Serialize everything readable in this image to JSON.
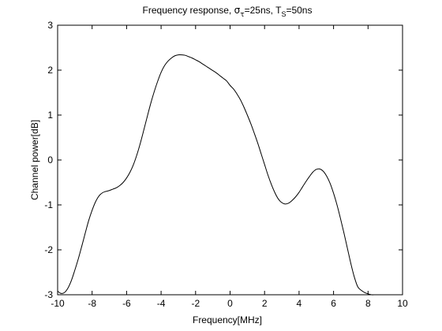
{
  "chart_data": {
    "type": "line",
    "title": {
      "prefix": "Frequency response, ",
      "sym1": "σ",
      "sub1": "τ",
      "mid": "=25ns, ",
      "sym2": "T",
      "sub2": "S",
      "suffix": "=50ns"
    },
    "xlabel": "Frequency[MHz]",
    "ylabel": "Channel power[dB]",
    "xlim": [
      -10,
      10
    ],
    "ylim": [
      -3,
      3
    ],
    "xticks": [
      -10,
      -8,
      -6,
      -4,
      -2,
      0,
      2,
      4,
      6,
      8,
      10
    ],
    "yticks": [
      -3,
      -2,
      -1,
      0,
      1,
      2,
      3
    ],
    "grid": false,
    "series": [
      {
        "color": "#000000",
        "x": [
          -10,
          -9.8,
          -9.6,
          -9.4,
          -9.2,
          -9.0,
          -8.8,
          -8.6,
          -8.4,
          -8.2,
          -8.0,
          -7.8,
          -7.6,
          -7.4,
          -7.2,
          -7.0,
          -6.8,
          -6.6,
          -6.4,
          -6.2,
          -6.0,
          -5.8,
          -5.6,
          -5.4,
          -5.2,
          -5.0,
          -4.8,
          -4.6,
          -4.4,
          -4.2,
          -4.0,
          -3.8,
          -3.6,
          -3.4,
          -3.2,
          -3.0,
          -2.8,
          -2.6,
          -2.4,
          -2.2,
          -2.0,
          -1.8,
          -1.6,
          -1.4,
          -1.2,
          -1.0,
          -0.8,
          -0.6,
          -0.4,
          -0.2,
          0.0,
          0.2,
          0.4,
          0.6,
          0.8,
          1.0,
          1.2,
          1.4,
          1.6,
          1.8,
          2.0,
          2.2,
          2.4,
          2.6,
          2.8,
          3.0,
          3.2,
          3.4,
          3.6,
          3.8,
          4.0,
          4.2,
          4.4,
          4.6,
          4.8,
          5.0,
          5.2,
          5.4,
          5.6,
          5.8,
          6.0,
          6.2,
          6.4,
          6.6,
          6.8,
          7.0,
          7.2,
          7.4,
          7.6,
          7.8,
          8.0,
          8.2,
          8.4,
          8.6,
          8.8,
          9.0,
          9.2,
          9.4,
          9.6,
          9.8,
          10.0
        ],
        "y": [
          -2.92,
          -2.97,
          -2.95,
          -2.85,
          -2.68,
          -2.45,
          -2.2,
          -1.92,
          -1.63,
          -1.35,
          -1.12,
          -0.93,
          -0.8,
          -0.73,
          -0.7,
          -0.68,
          -0.65,
          -0.62,
          -0.57,
          -0.5,
          -0.4,
          -0.27,
          -0.1,
          0.12,
          0.38,
          0.67,
          0.97,
          1.26,
          1.52,
          1.75,
          1.95,
          2.1,
          2.2,
          2.27,
          2.32,
          2.34,
          2.34,
          2.33,
          2.3,
          2.27,
          2.23,
          2.19,
          2.14,
          2.09,
          2.04,
          1.99,
          1.94,
          1.88,
          1.82,
          1.76,
          1.66,
          1.58,
          1.47,
          1.34,
          1.18,
          1.0,
          0.81,
          0.6,
          0.38,
          0.14,
          -0.1,
          -0.34,
          -0.55,
          -0.73,
          -0.87,
          -0.95,
          -0.98,
          -0.96,
          -0.9,
          -0.82,
          -0.72,
          -0.6,
          -0.48,
          -0.37,
          -0.27,
          -0.21,
          -0.2,
          -0.25,
          -0.36,
          -0.52,
          -0.74,
          -1.0,
          -1.3,
          -1.62,
          -1.96,
          -2.3,
          -2.6,
          -2.82,
          -2.9,
          -2.95,
          -2.98,
          -3.0,
          -3.0,
          -3.0,
          -3.0,
          -3.0,
          -3.0,
          -3.0,
          -3.0,
          -3.0,
          -3.0
        ]
      }
    ]
  }
}
